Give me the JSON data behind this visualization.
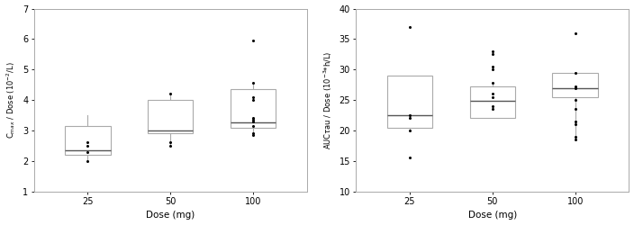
{
  "left_ylabel": "C$_{max}$ / Dose (10$^{-2}$/L)",
  "right_ylabel": "AUC$\\tau$au / Dose (10$^{-3}$*h/L)",
  "xlabel": "Dose (mg)",
  "doses": [
    25,
    50,
    100
  ],
  "left_boxes": {
    "25": {
      "q1": 2.2,
      "median": 2.35,
      "q3": 3.15,
      "whislo": 2.05,
      "whishi": 3.5,
      "fliers": [
        2.5,
        2.6,
        2.0,
        2.3
      ]
    },
    "50": {
      "q1": 2.9,
      "median": 3.0,
      "q3": 4.0,
      "whislo": 2.5,
      "whishi": 4.2,
      "fliers": [
        2.6,
        2.5,
        4.2
      ]
    },
    "100": {
      "q1": 3.1,
      "median": 3.25,
      "q3": 4.35,
      "whislo": 2.85,
      "whishi": 4.5,
      "fliers": [
        5.95,
        4.55,
        4.1,
        4.0,
        3.4,
        3.35,
        3.3,
        3.15,
        2.9,
        2.85
      ]
    }
  },
  "right_boxes": {
    "25": {
      "q1": 20.5,
      "median": 22.5,
      "q3": 29.0,
      "whislo": 20.0,
      "whishi": 29.0,
      "fliers": [
        37.0,
        22.5,
        22.0,
        20.0,
        15.5
      ]
    },
    "50": {
      "q1": 22.0,
      "median": 24.8,
      "q3": 27.2,
      "whislo": 22.0,
      "whishi": 27.5,
      "fliers": [
        33.0,
        32.5,
        30.5,
        30.0,
        27.8,
        26.0,
        25.5,
        24.0,
        23.5
      ]
    },
    "100": {
      "q1": 25.5,
      "median": 27.0,
      "q3": 29.5,
      "whislo": 19.0,
      "whishi": 29.5,
      "fliers": [
        36.0,
        29.5,
        27.2,
        27.0,
        25.0,
        23.5,
        21.5,
        21.0,
        19.0,
        18.5
      ]
    }
  },
  "left_ylim": [
    1,
    7
  ],
  "left_yticks": [
    1,
    2,
    3,
    4,
    5,
    6,
    7
  ],
  "right_ylim": [
    10,
    40
  ],
  "right_yticks": [
    10,
    15,
    20,
    25,
    30,
    35,
    40
  ],
  "box_edge_color": "#aaaaaa",
  "median_color": "#555555",
  "flier_color": "#000000",
  "whisker_color": "#aaaaaa",
  "box_width": 0.55,
  "figsize": [
    7.04,
    2.5
  ],
  "dpi": 100
}
